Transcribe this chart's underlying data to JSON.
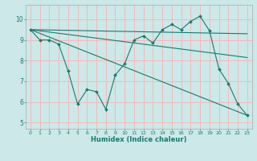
{
  "xlabel": "Humidex (Indice chaleur)",
  "bg_color": "#cce8e8",
  "grid_color": "#f5b8b8",
  "line_color": "#1a7a6e",
  "xlim": [
    -0.5,
    23.5
  ],
  "ylim": [
    4.7,
    10.7
  ],
  "yticks": [
    5,
    6,
    7,
    8,
    9,
    10
  ],
  "xticks": [
    0,
    1,
    2,
    3,
    4,
    5,
    6,
    7,
    8,
    9,
    10,
    11,
    12,
    13,
    14,
    15,
    16,
    17,
    18,
    19,
    20,
    21,
    22,
    23
  ],
  "zigzag_x": [
    0,
    1,
    2,
    3,
    4,
    5,
    6,
    7,
    8,
    9,
    10,
    11,
    12,
    13,
    14,
    15,
    16,
    17,
    18,
    19,
    20,
    21,
    22,
    23
  ],
  "zigzag_y": [
    9.5,
    9.0,
    9.0,
    8.8,
    7.5,
    5.9,
    6.6,
    6.5,
    5.65,
    7.3,
    7.85,
    9.0,
    9.2,
    8.85,
    9.5,
    9.75,
    9.5,
    9.9,
    10.15,
    9.45,
    7.6,
    6.9,
    5.9,
    5.35
  ],
  "flat_line_x": [
    0,
    23
  ],
  "flat_line_y": [
    9.5,
    9.3
  ],
  "mid_line_x": [
    0,
    23
  ],
  "mid_line_y": [
    9.5,
    8.15
  ],
  "steep_line_x": [
    0,
    23
  ],
  "steep_line_y": [
    9.5,
    5.35
  ]
}
